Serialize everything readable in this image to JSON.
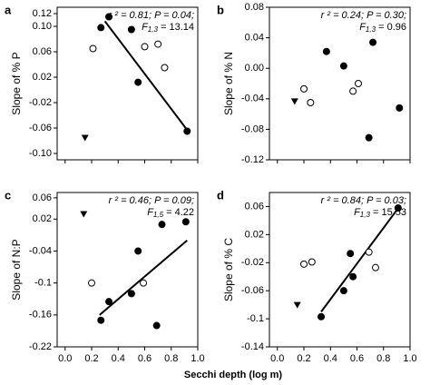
{
  "xlabel": "Secchi depth (log m)",
  "chart_data": [
    {
      "type": "scatter",
      "letter": "a",
      "ylabel": "Slope of % P",
      "xlim": [
        -0.06,
        1.0
      ],
      "ylim": [
        -0.11,
        0.13
      ],
      "xticks": [
        {
          "value": 0,
          "label": "0.0"
        },
        {
          "value": 0.2,
          "label": "0.2"
        },
        {
          "value": 0.4,
          "label": "0.4"
        },
        {
          "value": 0.6,
          "label": "0.6"
        },
        {
          "value": 0.8,
          "label": "0.8"
        },
        {
          "value": 1,
          "label": "1.0"
        }
      ],
      "xtick_labels": false,
      "yticks": [
        {
          "value": 0.12,
          "label": "0.12"
        },
        {
          "value": 0.1,
          "label": "0.10"
        },
        {
          "value": 0.06,
          "label": "0.06"
        },
        {
          "value": 0.02,
          "label": "0.02"
        },
        {
          "value": -0.02,
          "label": "-0.02"
        },
        {
          "value": -0.06,
          "label": "-0.06"
        },
        {
          "value": -0.1,
          "label": "-0.10"
        }
      ],
      "annotation": {
        "stats": "r ² = 0.81; P = 0.04;",
        "f": "F",
        "df": "1,3",
        "fval": " = 13.14"
      },
      "series": [
        {
          "marker": "filled",
          "x": [
            0.27,
            0.33,
            0.5,
            0.55,
            0.92
          ],
          "values": [
            0.098,
            0.115,
            0.095,
            0.012,
            -0.065
          ]
        },
        {
          "marker": "open",
          "x": [
            0.21,
            0.6,
            0.7,
            0.75
          ],
          "values": [
            0.065,
            0.068,
            0.072,
            0.035
          ]
        },
        {
          "marker": "triangle",
          "x": [
            0.15
          ],
          "values": [
            -0.075
          ]
        }
      ],
      "fit": {
        "x": [
          0.3,
          0.92
        ],
        "y": [
          0.108,
          -0.063
        ]
      }
    },
    {
      "type": "scatter",
      "letter": "b",
      "ylabel": "Slope of % N",
      "xlim": [
        -0.06,
        1.0
      ],
      "ylim": [
        -0.12,
        0.08
      ],
      "xticks": [
        {
          "value": 0,
          "label": "0.0"
        },
        {
          "value": 0.2,
          "label": "0.2"
        },
        {
          "value": 0.4,
          "label": "0.4"
        },
        {
          "value": 0.6,
          "label": "0.6"
        },
        {
          "value": 0.8,
          "label": "0.8"
        },
        {
          "value": 1,
          "label": "1.0"
        }
      ],
      "xtick_labels": false,
      "yticks": [
        {
          "value": 0.08,
          "label": "0.08"
        },
        {
          "value": 0.04,
          "label": "0.04"
        },
        {
          "value": 0,
          "label": "0.00"
        },
        {
          "value": -0.04,
          "label": "-0.04"
        },
        {
          "value": -0.08,
          "label": "-0.08"
        },
        {
          "value": -0.12,
          "label": "-0.12"
        }
      ],
      "annotation": {
        "stats": "r ² = 0.24; P = 0.30;",
        "f": "F",
        "df": "1,3",
        "fval": " = 0.96"
      },
      "series": [
        {
          "marker": "filled",
          "x": [
            0.37,
            0.5,
            0.72,
            0.69,
            0.92
          ],
          "values": [
            0.022,
            0.003,
            0.034,
            -0.091,
            -0.052
          ]
        },
        {
          "marker": "open",
          "x": [
            0.2,
            0.25,
            0.57,
            0.61
          ],
          "values": [
            -0.027,
            -0.045,
            -0.03,
            -0.02
          ]
        },
        {
          "marker": "triangle",
          "x": [
            0.13
          ],
          "values": [
            -0.043
          ]
        }
      ]
    },
    {
      "type": "scatter",
      "letter": "c",
      "ylabel": "Slope of N:P",
      "xlim": [
        -0.06,
        1.0
      ],
      "ylim": [
        -0.22,
        0.07
      ],
      "xticks": [
        {
          "value": 0,
          "label": "0.0"
        },
        {
          "value": 0.2,
          "label": "0.2"
        },
        {
          "value": 0.4,
          "label": "0.4"
        },
        {
          "value": 0.6,
          "label": "0.6"
        },
        {
          "value": 0.8,
          "label": "0.8"
        },
        {
          "value": 1,
          "label": "1.0"
        }
      ],
      "xtick_labels": true,
      "yticks": [
        0.06,
        0.02,
        -0.04,
        -0.1,
        -0.16,
        -0.22
      ],
      "annotation": {
        "stats": "r ² = 0.46; P = 0.09;",
        "f": "F",
        "df": "1,5",
        "fval": " = 4.22"
      },
      "series": [
        {
          "marker": "filled",
          "x": [
            0.27,
            0.33,
            0.5,
            0.55,
            0.69,
            0.73,
            0.91
          ],
          "values": [
            -0.17,
            -0.135,
            -0.12,
            -0.04,
            -0.18,
            0.01,
            0.015
          ]
        },
        {
          "marker": "open",
          "x": [
            0.2,
            0.59
          ],
          "values": [
            -0.1,
            -0.1
          ]
        },
        {
          "marker": "triangle",
          "x": [
            0.14
          ],
          "values": [
            0.03
          ]
        }
      ],
      "fit": {
        "x": [
          0.26,
          0.92
        ],
        "y": [
          -0.16,
          -0.02
        ]
      }
    },
    {
      "type": "scatter",
      "letter": "d",
      "ylabel": "Slope of % C",
      "xlim": [
        -0.06,
        1.0
      ],
      "ylim": [
        -0.14,
        0.08
      ],
      "xticks": [
        {
          "value": 0,
          "label": "0.0"
        },
        {
          "value": 0.2,
          "label": "0.2"
        },
        {
          "value": 0.4,
          "label": "0.4"
        },
        {
          "value": 0.6,
          "label": "0.6"
        },
        {
          "value": 0.8,
          "label": "0.8"
        },
        {
          "value": 1,
          "label": "1.0"
        }
      ],
      "xtick_labels": true,
      "yticks": [
        0.06,
        0.02,
        -0.02,
        -0.06,
        -0.1,
        -0.14
      ],
      "annotation": {
        "stats": "r ² = 0.84; P = 0.03;",
        "f": "F",
        "df": "1,3",
        "fval": " = 15.53"
      },
      "series": [
        {
          "marker": "filled",
          "x": [
            0.33,
            0.5,
            0.55,
            0.57,
            0.91
          ],
          "values": [
            -0.097,
            -0.06,
            -0.007,
            -0.04,
            0.058
          ]
        },
        {
          "marker": "open",
          "x": [
            0.2,
            0.26,
            0.69,
            0.74
          ],
          "values": [
            -0.022,
            -0.019,
            -0.005,
            -0.027
          ]
        },
        {
          "marker": "triangle",
          "x": [
            0.15
          ],
          "values": [
            -0.08
          ]
        }
      ],
      "fit": {
        "x": [
          0.33,
          0.92
        ],
        "y": [
          -0.09,
          0.06
        ]
      }
    }
  ]
}
